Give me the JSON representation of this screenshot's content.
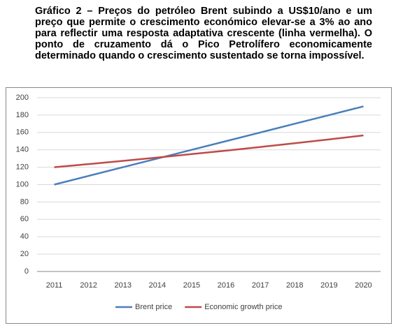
{
  "chart_data": {
    "type": "line",
    "title": "Gráfico 2 – Preços do petróleo Brent subindo a US$10/ano e um preço que permite o crescimento económico elevar-se a 3% ao ano para reflectir uma resposta adaptativa crescente (linha vermelha). O ponto de cruzamento dá o Pico Petrolífero economicamente determinado quando o crescimento sustentado se torna impossível.",
    "categories": [
      "2011",
      "2012",
      "2013",
      "2014",
      "2015",
      "2016",
      "2017",
      "2018",
      "2019",
      "2020"
    ],
    "series": [
      {
        "name": "Brent price",
        "color": "#4a7ebb",
        "values": [
          100,
          110,
          120,
          130,
          140,
          150,
          160,
          170,
          180,
          190
        ]
      },
      {
        "name": "Economic growth price",
        "color": "#be4b48",
        "values": [
          120,
          123.6,
          127.3,
          131.1,
          135.1,
          139.1,
          143.3,
          147.6,
          152,
          156.6
        ]
      }
    ],
    "ylim": [
      0,
      200
    ],
    "yticks": [
      0,
      20,
      40,
      60,
      80,
      100,
      120,
      140,
      160,
      180,
      200
    ],
    "grid": true,
    "legend": "bottom"
  }
}
